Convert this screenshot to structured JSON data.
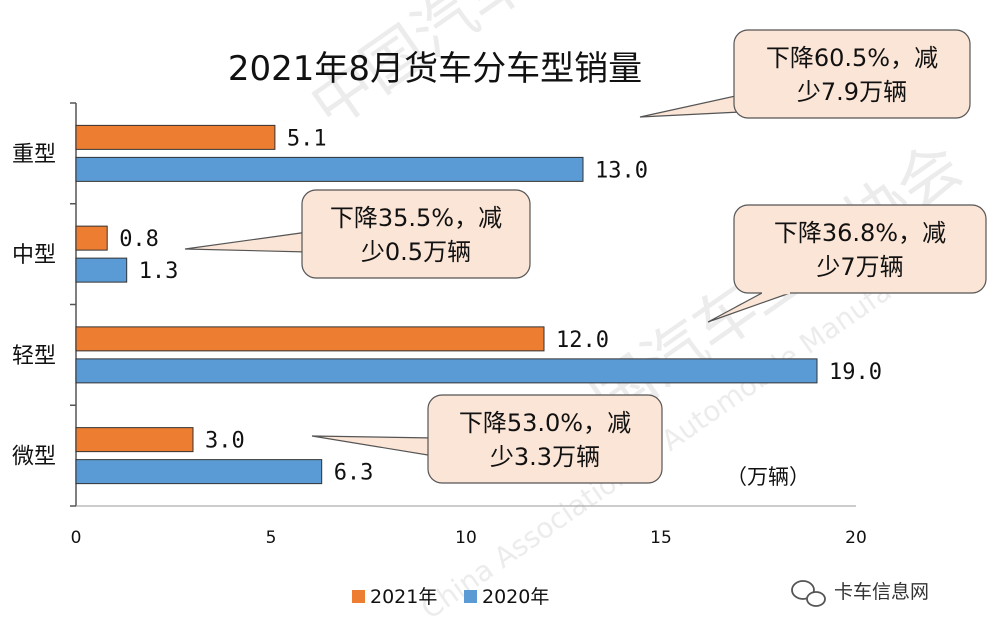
{
  "chart_data": {
    "type": "bar",
    "orientation": "horizontal",
    "title": "2021年8月货车分车型销量",
    "unit_label": "（万辆）",
    "categories": [
      "重型",
      "中型",
      "轻型",
      "微型"
    ],
    "series": [
      {
        "name": "2021年",
        "color": "#ed7d31",
        "values": [
          5.1,
          0.8,
          12.0,
          3.0
        ],
        "labels": [
          "5.1",
          "0.8",
          "12.0",
          "3.0"
        ]
      },
      {
        "name": "2020年",
        "color": "#5b9bd5",
        "values": [
          13.0,
          1.3,
          19.0,
          6.3
        ],
        "labels": [
          "13.0",
          "1.3",
          "19.0",
          "6.3"
        ]
      }
    ],
    "xlim": [
      0,
      20
    ],
    "xticks": [
      "0",
      "5",
      "10",
      "15",
      "20"
    ],
    "grid": false,
    "legend_position": "bottom",
    "annotations": [
      {
        "category": "重型",
        "lines": [
          "下降60.5%，减",
          "少7.9万辆"
        ]
      },
      {
        "category": "中型",
        "lines": [
          "下降35.5%，减",
          "少0.5万辆"
        ]
      },
      {
        "category": "轻型",
        "lines": [
          "下降36.8%，减",
          "少7万辆"
        ]
      },
      {
        "category": "微型",
        "lines": [
          "下降53.0%，减",
          "少3.3万辆"
        ]
      }
    ]
  },
  "colors": {
    "callout_fill": "#fbe5d6",
    "callout_border": "#555555"
  },
  "watermark": {
    "org_cn": "中国汽车工业协会",
    "org_en": "China Association of Automobile Manufacturers"
  },
  "brand": {
    "name": "卡车信息网",
    "icon": "wechat-icon"
  }
}
